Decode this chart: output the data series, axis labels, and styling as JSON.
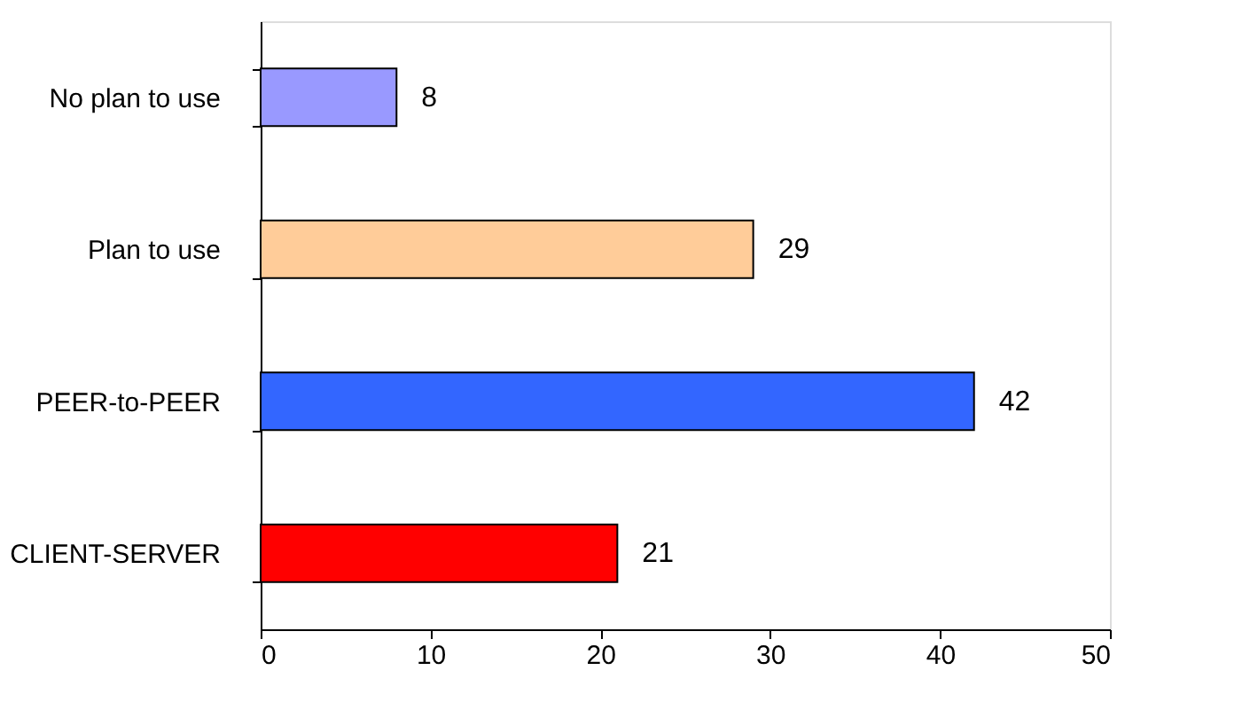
{
  "chart_data": {
    "type": "bar",
    "orientation": "horizontal",
    "categories": [
      "No plan to use",
      "Plan to use",
      "PEER-to-PEER",
      "CLIENT-SERVER"
    ],
    "values": [
      8,
      29,
      42,
      21
    ],
    "colors": [
      "#9999ff",
      "#ffcc99",
      "#3366ff",
      "#ff0000"
    ],
    "xlim": [
      0,
      50
    ],
    "xticks": [
      0,
      10,
      20,
      30,
      40,
      50
    ],
    "grid": false,
    "data_labels": true
  }
}
